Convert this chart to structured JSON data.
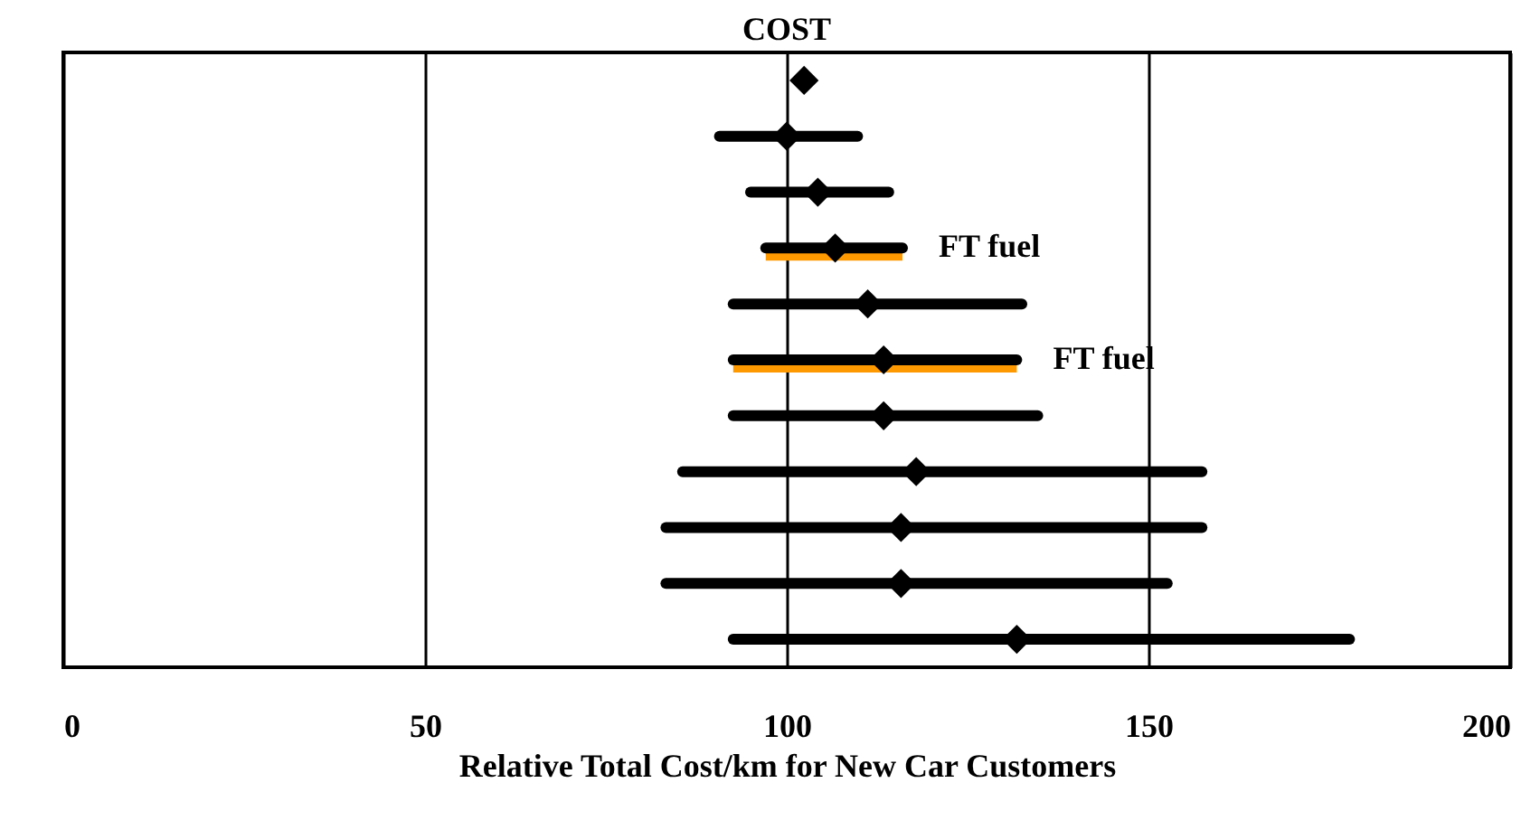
{
  "chart_data": {
    "type": "scatter",
    "orientation": "horizontal",
    "xlabel": "Relative Total Cost/km for New Car Customers",
    "categories": [
      null,
      null,
      null,
      null,
      null,
      null,
      null,
      null,
      null,
      null,
      null
    ],
    "series": [
      {
        "type": "bar",
        "color": "#ff9900",
        "base": [
          null,
          null,
          null,
          97.1,
          null,
          92.6,
          null,
          null,
          null,
          null,
          null
        ],
        "values": [
          null,
          null,
          null,
          18.9,
          null,
          39.2,
          null,
          null,
          null,
          null,
          null
        ]
      },
      {
        "color": "#000000",
        "marker": "diamond",
        "values": [
          102.4,
          100,
          104.3,
          106.7,
          111.2,
          113.4,
          113.4,
          117.9,
          115.8,
          115.8,
          131.8
        ],
        "errors": [
          null,
          [
            90.7,
            109.8
          ],
          [
            95,
            114.1
          ],
          [
            97.1,
            116.0
          ],
          [
            92.6,
            132.5
          ],
          [
            92.6,
            131.8
          ],
          [
            92.6,
            134.7
          ],
          [
            85.6,
            157.4
          ],
          [
            83.3,
            157.4
          ],
          [
            83.3,
            152.6
          ],
          [
            92.6,
            177.8
          ]
        ]
      }
    ],
    "annotations": [
      "COST",
      {
        "text": "FT fuel",
        "x": 116.0
      },
      {
        "text": "FT fuel",
        "x": 131.8
      }
    ],
    "xlim": [
      0,
      200
    ],
    "xticks": [
      0,
      50,
      100,
      150,
      200
    ],
    "grid": "x",
    "tick_labels": "x"
  }
}
